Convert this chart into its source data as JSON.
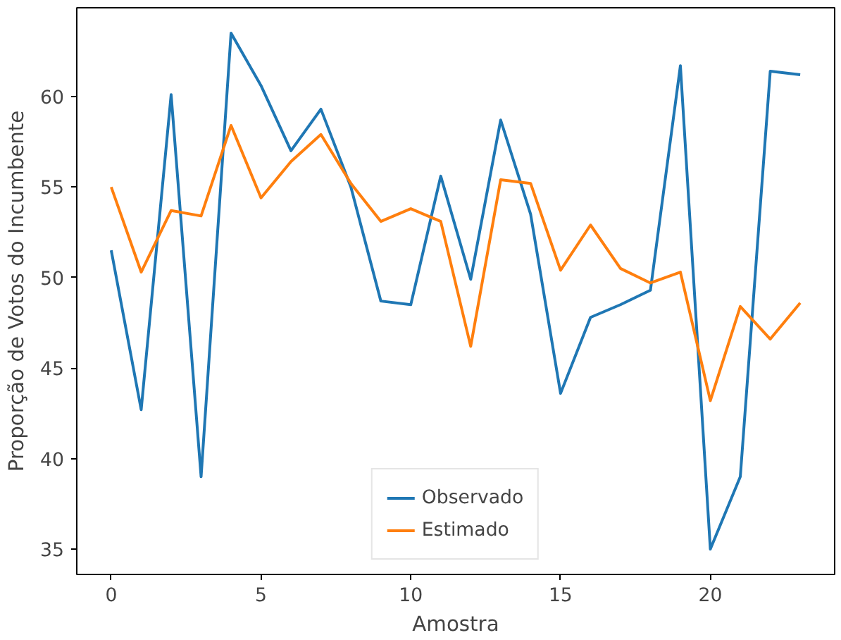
{
  "chart_data": {
    "type": "line",
    "xlabel": "Amostra",
    "ylabel": "Proporção de Votos do Incumbente",
    "x": [
      0,
      1,
      2,
      3,
      4,
      5,
      6,
      7,
      8,
      9,
      10,
      11,
      12,
      13,
      14,
      15,
      16,
      17,
      18,
      19,
      20,
      21,
      22,
      23
    ],
    "series": [
      {
        "name": "Observado",
        "color": "#1f77b4",
        "values": [
          51.5,
          42.7,
          60.1,
          39.0,
          63.5,
          60.6,
          57.0,
          59.3,
          55.0,
          48.7,
          48.5,
          55.6,
          49.9,
          58.7,
          53.5,
          43.6,
          47.8,
          48.5,
          49.3,
          61.7,
          35.0,
          39.0,
          61.4,
          61.2
        ]
      },
      {
        "name": "Estimado",
        "color": "#ff7f0e",
        "values": [
          55.0,
          50.3,
          53.7,
          53.4,
          58.4,
          54.4,
          56.4,
          57.9,
          55.2,
          53.1,
          53.8,
          53.1,
          46.2,
          55.4,
          55.2,
          50.4,
          52.9,
          50.5,
          49.7,
          50.3,
          43.2,
          48.4,
          46.6,
          48.6
        ]
      }
    ],
    "xlim": [
      -1.15,
      24.15
    ],
    "ylim": [
      33.6,
      64.9
    ],
    "xticks": [
      0,
      5,
      10,
      15,
      20
    ],
    "yticks": [
      35,
      40,
      45,
      50,
      55,
      60
    ],
    "grid": false,
    "legend": "bottom",
    "marker": "none",
    "line_style": "solid"
  }
}
